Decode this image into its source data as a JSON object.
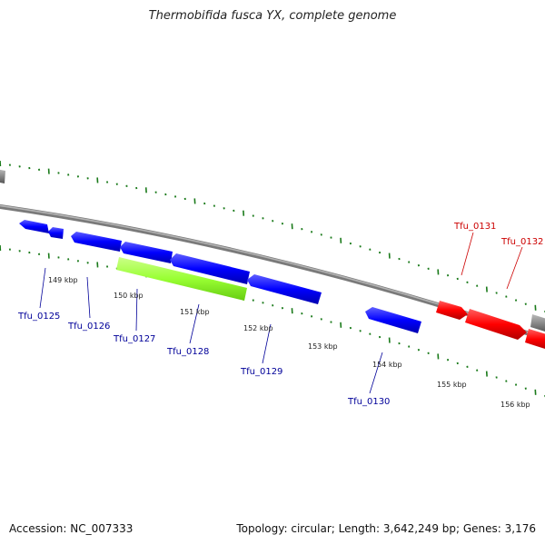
{
  "title": "Thermobifida fusca YX, complete genome",
  "footer": {
    "accession": "Accession: NC_007333",
    "stats": "Topology: circular; Length: 3,642,249 bp; Genes: 3,176"
  },
  "colors": {
    "forward_gene": "#ff0000",
    "reverse_gene": "#0000ff",
    "highlight_gene": "#99ff33",
    "backbone": "#808080",
    "ticks": "#1a7a1a",
    "forward_label": "#cc0000",
    "reverse_label": "#000099"
  },
  "scale": {
    "ticks_kbp": [
      "149 kbp",
      "150 kbp",
      "151 kbp",
      "152 kbp",
      "153 kbp",
      "154 kbp",
      "155 kbp",
      "156 kbp"
    ]
  },
  "genes": [
    {
      "label": "Tfu_0125",
      "strand": "reverse",
      "color": "blue"
    },
    {
      "label": "Tfu_0126",
      "strand": "reverse",
      "color": "blue"
    },
    {
      "label": "Tfu_0127",
      "strand": "reverse",
      "color": "green"
    },
    {
      "label": "Tfu_0128",
      "strand": "reverse",
      "color": "blue"
    },
    {
      "label": "Tfu_0129",
      "strand": "reverse",
      "color": "blue"
    },
    {
      "label": "Tfu_0130",
      "strand": "reverse",
      "color": "blue"
    },
    {
      "label": "Tfu_0131",
      "strand": "forward",
      "color": "red"
    },
    {
      "label": "Tfu_0132",
      "strand": "forward",
      "color": "red"
    }
  ]
}
